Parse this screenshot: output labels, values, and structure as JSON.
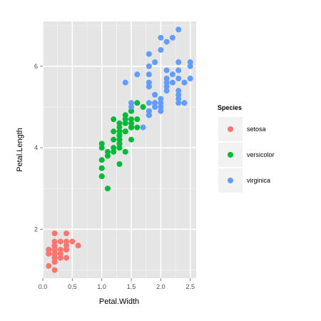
{
  "chart_data": {
    "type": "scatter",
    "title": "",
    "xlabel": "Petal.Width",
    "ylabel": "Petal.Length",
    "xlim": [
      0,
      2.6
    ],
    "ylim": [
      0.8,
      7.1
    ],
    "xticks": [
      0.0,
      0.5,
      1.0,
      1.5,
      2.0,
      2.5
    ],
    "xtick_labels": [
      "0.0",
      "0.5",
      "1.0",
      "1.5",
      "2.0",
      "2.5"
    ],
    "yticks": [
      2,
      4,
      6
    ],
    "ytick_labels": [
      "2",
      "4",
      "6"
    ],
    "grid": true,
    "panel_background": "#e5e5e5",
    "legend": {
      "title": "Species",
      "position": "right"
    },
    "series": [
      {
        "name": "setosa",
        "color": "#f8766d",
        "points": [
          [
            0.2,
            1.4
          ],
          [
            0.2,
            1.4
          ],
          [
            0.2,
            1.3
          ],
          [
            0.2,
            1.5
          ],
          [
            0.2,
            1.4
          ],
          [
            0.4,
            1.7
          ],
          [
            0.3,
            1.4
          ],
          [
            0.2,
            1.5
          ],
          [
            0.2,
            1.4
          ],
          [
            0.1,
            1.5
          ],
          [
            0.2,
            1.5
          ],
          [
            0.2,
            1.6
          ],
          [
            0.1,
            1.4
          ],
          [
            0.1,
            1.1
          ],
          [
            0.2,
            1.2
          ],
          [
            0.4,
            1.5
          ],
          [
            0.4,
            1.3
          ],
          [
            0.3,
            1.4
          ],
          [
            0.3,
            1.7
          ],
          [
            0.3,
            1.5
          ],
          [
            0.2,
            1.7
          ],
          [
            0.4,
            1.5
          ],
          [
            0.2,
            1.0
          ],
          [
            0.5,
            1.7
          ],
          [
            0.2,
            1.9
          ],
          [
            0.2,
            1.6
          ],
          [
            0.4,
            1.6
          ],
          [
            0.2,
            1.5
          ],
          [
            0.2,
            1.4
          ],
          [
            0.2,
            1.6
          ],
          [
            0.2,
            1.6
          ],
          [
            0.4,
            1.5
          ],
          [
            0.1,
            1.5
          ],
          [
            0.2,
            1.4
          ],
          [
            0.2,
            1.5
          ],
          [
            0.2,
            1.2
          ],
          [
            0.2,
            1.3
          ],
          [
            0.1,
            1.4
          ],
          [
            0.2,
            1.3
          ],
          [
            0.2,
            1.5
          ],
          [
            0.3,
            1.3
          ],
          [
            0.3,
            1.3
          ],
          [
            0.2,
            1.3
          ],
          [
            0.6,
            1.6
          ],
          [
            0.4,
            1.9
          ],
          [
            0.3,
            1.4
          ],
          [
            0.2,
            1.6
          ],
          [
            0.2,
            1.4
          ],
          [
            0.2,
            1.5
          ],
          [
            0.2,
            1.4
          ]
        ]
      },
      {
        "name": "versicolor",
        "color": "#00ba38",
        "points": [
          [
            1.4,
            4.7
          ],
          [
            1.5,
            4.5
          ],
          [
            1.5,
            4.9
          ],
          [
            1.3,
            4.0
          ],
          [
            1.5,
            4.6
          ],
          [
            1.3,
            4.5
          ],
          [
            1.6,
            4.7
          ],
          [
            1.0,
            3.3
          ],
          [
            1.3,
            4.6
          ],
          [
            1.4,
            3.9
          ],
          [
            1.0,
            3.5
          ],
          [
            1.5,
            4.2
          ],
          [
            1.0,
            4.0
          ],
          [
            1.4,
            4.7
          ],
          [
            1.3,
            3.6
          ],
          [
            1.4,
            4.4
          ],
          [
            1.5,
            4.5
          ],
          [
            1.0,
            4.1
          ],
          [
            1.5,
            4.5
          ],
          [
            1.1,
            3.9
          ],
          [
            1.8,
            4.8
          ],
          [
            1.3,
            4.0
          ],
          [
            1.5,
            4.9
          ],
          [
            1.2,
            4.7
          ],
          [
            1.3,
            4.3
          ],
          [
            1.4,
            4.4
          ],
          [
            1.4,
            4.8
          ],
          [
            1.7,
            5.0
          ],
          [
            1.5,
            4.5
          ],
          [
            1.0,
            3.5
          ],
          [
            1.1,
            3.8
          ],
          [
            1.0,
            3.7
          ],
          [
            1.2,
            3.9
          ],
          [
            1.6,
            5.1
          ],
          [
            1.5,
            4.5
          ],
          [
            1.6,
            4.5
          ],
          [
            1.5,
            4.7
          ],
          [
            1.3,
            4.4
          ],
          [
            1.3,
            4.1
          ],
          [
            1.3,
            4.0
          ],
          [
            1.2,
            4.4
          ],
          [
            1.4,
            4.6
          ],
          [
            1.2,
            4.0
          ],
          [
            1.0,
            3.3
          ],
          [
            1.3,
            4.2
          ],
          [
            1.2,
            4.2
          ],
          [
            1.3,
            4.2
          ],
          [
            1.3,
            4.3
          ],
          [
            1.1,
            3.0
          ],
          [
            1.3,
            4.1
          ]
        ]
      },
      {
        "name": "virginica",
        "color": "#619cff",
        "points": [
          [
            2.5,
            6.0
          ],
          [
            1.9,
            5.1
          ],
          [
            2.1,
            5.9
          ],
          [
            1.8,
            5.6
          ],
          [
            2.2,
            5.8
          ],
          [
            2.1,
            6.6
          ],
          [
            1.7,
            4.5
          ],
          [
            1.8,
            6.3
          ],
          [
            1.8,
            5.8
          ],
          [
            2.5,
            6.1
          ],
          [
            2.0,
            5.1
          ],
          [
            1.9,
            5.3
          ],
          [
            2.1,
            5.5
          ],
          [
            2.0,
            5.0
          ],
          [
            2.4,
            5.1
          ],
          [
            2.3,
            5.3
          ],
          [
            1.8,
            5.5
          ],
          [
            2.2,
            6.7
          ],
          [
            2.3,
            6.9
          ],
          [
            1.5,
            5.0
          ],
          [
            2.3,
            5.7
          ],
          [
            2.0,
            4.9
          ],
          [
            2.0,
            6.7
          ],
          [
            1.8,
            4.9
          ],
          [
            2.1,
            5.7
          ],
          [
            1.8,
            6.0
          ],
          [
            1.8,
            4.8
          ],
          [
            1.8,
            4.9
          ],
          [
            2.1,
            5.6
          ],
          [
            1.6,
            5.8
          ],
          [
            1.9,
            6.1
          ],
          [
            2.0,
            6.4
          ],
          [
            2.2,
            5.6
          ],
          [
            1.5,
            5.1
          ],
          [
            1.4,
            5.6
          ],
          [
            2.3,
            6.1
          ],
          [
            2.4,
            5.6
          ],
          [
            1.8,
            5.5
          ],
          [
            1.8,
            4.8
          ],
          [
            2.1,
            5.4
          ],
          [
            2.4,
            5.6
          ],
          [
            2.3,
            5.1
          ],
          [
            1.9,
            5.1
          ],
          [
            2.3,
            5.9
          ],
          [
            2.5,
            5.7
          ],
          [
            2.3,
            5.2
          ],
          [
            1.9,
            5.0
          ],
          [
            2.0,
            5.2
          ],
          [
            2.3,
            5.4
          ],
          [
            1.8,
            5.1
          ]
        ]
      }
    ]
  }
}
